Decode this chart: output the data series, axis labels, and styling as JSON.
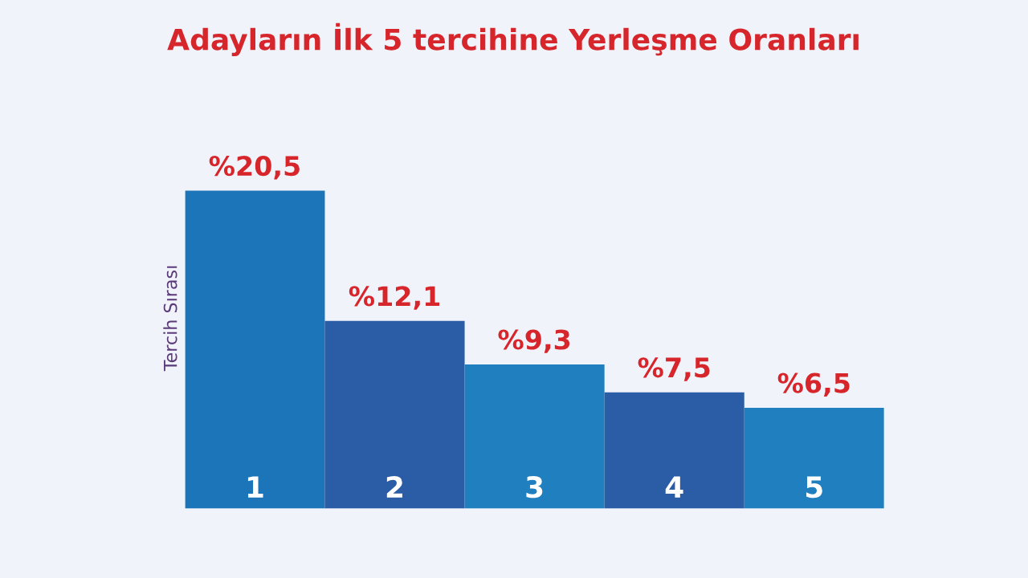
{
  "chart_data": {
    "type": "bar",
    "title": "Adayların İlk 5 tercihine Yerleşme Oranları",
    "ylabel": "Tercih Sırası",
    "categories": [
      "1",
      "2",
      "3",
      "4",
      "5"
    ],
    "values": [
      20.5,
      12.1,
      9.3,
      7.5,
      6.5
    ],
    "value_labels": [
      "%20,5",
      "%12,1",
      "%9,3",
      "%7,5",
      "%6,5"
    ],
    "colors": [
      "#1b75b8",
      "#2a5da6",
      "#1f7fbf",
      "#2a5da6",
      "#1f7fbf"
    ],
    "legend": false
  }
}
